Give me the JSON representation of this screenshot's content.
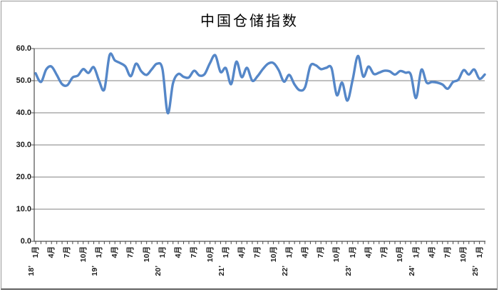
{
  "chart_data": {
    "type": "line",
    "title": "中国仓储指数",
    "legend": "none",
    "grid": "horizontal",
    "ylim": [
      0,
      60
    ],
    "y_tick_step": 10,
    "y_tick_labels": [
      "0.0",
      "10.0",
      "20.0",
      "30.0",
      "40.0",
      "50.0",
      "60.0"
    ],
    "x_start_month": "2018-01",
    "x_end_month": "2025-02",
    "months_per_labeled_tick": 3,
    "x_month_tick_labels": [
      "1月",
      "4月",
      "7月",
      "10月",
      "1月",
      "4月",
      "7月",
      "10月",
      "1月",
      "4月",
      "7月",
      "10月",
      "1月",
      "4月",
      "7月",
      "10月",
      "1月",
      "4月",
      "7月",
      "10月",
      "1月",
      "4月",
      "7月",
      "10月",
      "1月",
      "4月",
      "7月",
      "10月",
      "1月"
    ],
    "x_year_labels": [
      "18’",
      "19’",
      "20’",
      "21’",
      "22’",
      "23’",
      "24’",
      "25’"
    ],
    "series": [
      {
        "name": "中国仓储指数",
        "values": [
          52.3,
          49.6,
          53.5,
          54.4,
          51.8,
          48.9,
          48.6,
          51.0,
          51.6,
          53.6,
          52.4,
          54.2,
          50.0,
          47.3,
          58.0,
          56.3,
          55.5,
          54.4,
          51.4,
          55.3,
          52.9,
          51.8,
          53.6,
          55.3,
          53.6,
          39.9,
          49.2,
          52.1,
          51.2,
          51.0,
          53.1,
          51.6,
          52.1,
          55.5,
          57.9,
          52.7,
          53.9,
          48.9,
          55.9,
          51.1,
          54.0,
          50.0,
          51.4,
          53.6,
          55.3,
          55.5,
          53.3,
          49.7,
          51.8,
          48.8,
          47.0,
          48.0,
          54.6,
          54.8,
          53.6,
          54.0,
          53.9,
          45.5,
          49.4,
          43.8,
          50.3,
          57.7,
          51.3,
          54.4,
          52.1,
          52.5,
          53.1,
          52.9,
          51.9,
          53.0,
          52.5,
          51.9,
          44.6,
          53.4,
          49.4,
          49.6,
          49.4,
          48.8,
          47.5,
          49.6,
          50.3,
          53.3,
          51.9,
          53.5,
          50.6,
          51.9
        ]
      }
    ],
    "colors": {
      "line": "#5587c8",
      "gridline": "#808080",
      "axis": "#4d4d4d",
      "tick_text": "#1a1a1a",
      "title_text": "#000000",
      "background": "#ffffff",
      "frame_border": "#979797"
    }
  }
}
